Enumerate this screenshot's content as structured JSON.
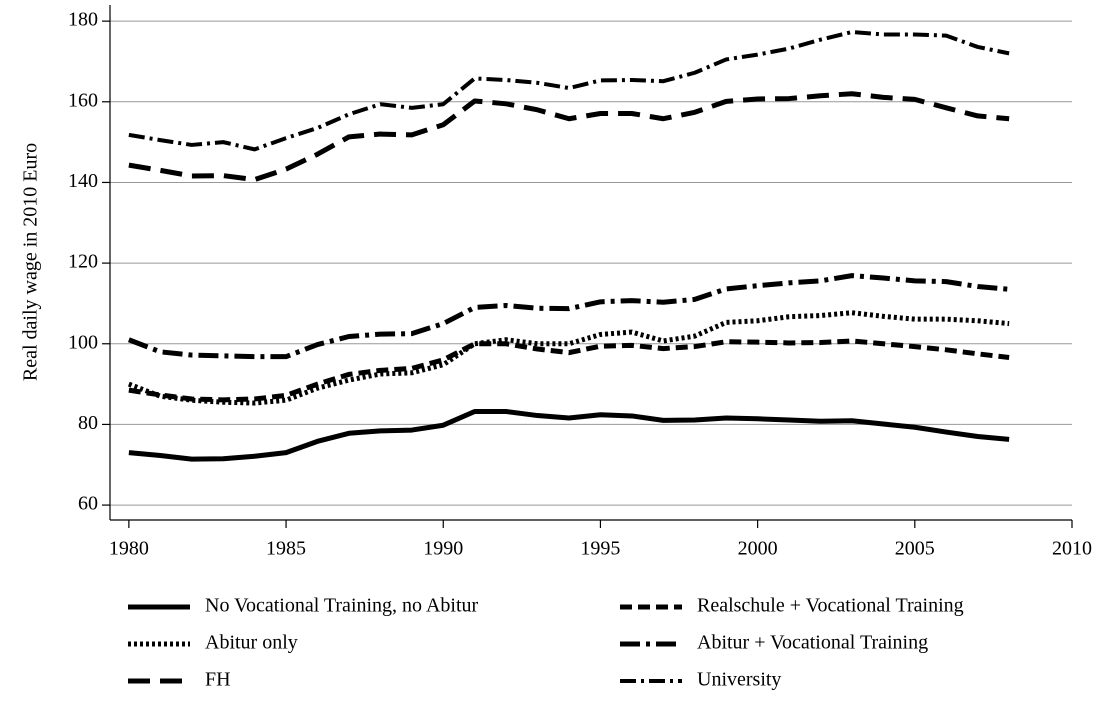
{
  "chart_data": {
    "type": "line",
    "y_label": "Real daily wage in 2010 Euro",
    "x": [
      1980,
      1981,
      1982,
      1983,
      1984,
      1985,
      1986,
      1987,
      1988,
      1989,
      1990,
      1991,
      1992,
      1993,
      1994,
      1995,
      1996,
      1997,
      1998,
      1999,
      2000,
      2001,
      2002,
      2003,
      2004,
      2005,
      2006,
      2007,
      2008
    ],
    "series": [
      {
        "name": "No Vocational Training, no Abitur",
        "color": "#000000",
        "dash": "none",
        "width": 5,
        "values": [
          73,
          72.3,
          71.4,
          71.5,
          72.1,
          73,
          75.8,
          77.8,
          78.4,
          78.6,
          79.8,
          83.2,
          83.2,
          82.2,
          81.6,
          82.4,
          82.1,
          81,
          81.1,
          81.6,
          81.4,
          81.1,
          80.8,
          80.9,
          80.1,
          79.3,
          78.1,
          77,
          76.3
        ]
      },
      {
        "name": "Realschule + Vocational Training",
        "color": "#000000",
        "dash": "12,6",
        "width": 5,
        "values": [
          88.5,
          87.3,
          86.3,
          86.1,
          86.3,
          87.2,
          90,
          92.4,
          93.4,
          93.9,
          96,
          100,
          100,
          98.7,
          97.8,
          99.4,
          99.6,
          98.8,
          99.3,
          100.5,
          100.4,
          100.2,
          100.3,
          100.7,
          100,
          99.3,
          98.5,
          97.5,
          96.6
        ]
      },
      {
        "name": "Abitur only",
        "color": "#000000",
        "dash": "3,3",
        "width": 5,
        "values": [
          90,
          87,
          86,
          85.5,
          85.3,
          86,
          89,
          91,
          92.5,
          92.8,
          94.8,
          100,
          101,
          100,
          100,
          102.3,
          102.9,
          100.7,
          101.9,
          105.3,
          105.7,
          106.7,
          107,
          107.7,
          106.8,
          106.1,
          106.1,
          105.7,
          105
        ]
      },
      {
        "name": "Abitur + Vocational Training",
        "color": "#000000",
        "dash": "20,6,4,6",
        "width": 5,
        "values": [
          101,
          98,
          97.2,
          97,
          96.8,
          96.8,
          99.8,
          101.8,
          102.4,
          102.5,
          105,
          109,
          109.5,
          108.8,
          108.7,
          110.4,
          110.7,
          110.3,
          111,
          113.6,
          114.4,
          115.1,
          115.6,
          116.9,
          116.3,
          115.6,
          115.4,
          114.2,
          113.5
        ]
      },
      {
        "name": "FH",
        "color": "#000000",
        "dash": "22,10",
        "width": 5,
        "values": [
          144.3,
          143,
          141.6,
          141.7,
          140.7,
          143.3,
          147,
          151.3,
          152,
          151.8,
          154.3,
          160.2,
          159.5,
          158,
          155.8,
          157.1,
          157.1,
          155.8,
          157.4,
          160.1,
          160.7,
          160.8,
          161.5,
          162,
          161.1,
          160.6,
          158.5,
          156.5,
          155.8
        ]
      },
      {
        "name": "University",
        "color": "#000000",
        "dash": "16,5,3,5",
        "width": 4,
        "values": [
          151.8,
          150.5,
          149.3,
          150,
          148.2,
          151,
          153.5,
          156.9,
          159.4,
          158.5,
          159.4,
          165.8,
          165.4,
          164.7,
          163.4,
          165.3,
          165.4,
          165.1,
          167.2,
          170.5,
          171.7,
          173.2,
          175.4,
          177.3,
          176.7,
          176.7,
          176.4,
          173.6,
          172
        ]
      }
    ],
    "xlim": [
      1979.4,
      2010
    ],
    "xticks": [
      1980,
      1985,
      1990,
      1995,
      2000,
      2005,
      2010
    ],
    "ylim": [
      56.3,
      184
    ],
    "yticks": [
      60,
      80,
      100,
      120,
      140,
      160,
      180
    ],
    "grid": true,
    "legend": "bottom"
  }
}
